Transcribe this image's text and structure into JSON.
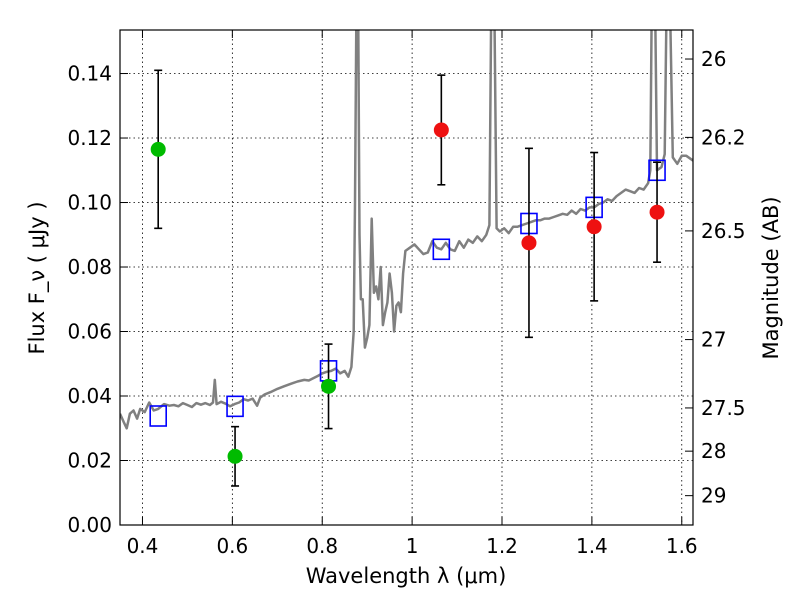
{
  "chart_data": {
    "type": "scatter",
    "xlabel": "Wavelength  λ (μm)",
    "ylabel": "Flux  F_ν  ( μJy )",
    "y2label": "Magnitude (AB)",
    "xlim": [
      0.35,
      1.625
    ],
    "ylim": [
      0.0,
      0.1535
    ],
    "grid": true,
    "x_ticks": [
      0.4,
      0.6,
      0.8,
      1.0,
      1.2,
      1.4,
      1.6
    ],
    "x_tick_labels": [
      "0.4",
      "0.6",
      "0.8",
      "1",
      "1.2",
      "1.4",
      "1.6"
    ],
    "y_ticks": [
      0.0,
      0.02,
      0.04,
      0.06,
      0.08,
      0.1,
      0.12,
      0.14
    ],
    "y_tick_labels": [
      "0.00",
      "0.02",
      "0.04",
      "0.06",
      "0.08",
      "0.10",
      "0.12",
      "0.14"
    ],
    "y2_ticks": [
      {
        "label": "26",
        "flux": 0.1445
      },
      {
        "label": "26.2",
        "flux": 0.1202
      },
      {
        "label": "26.5",
        "flux": 0.0912
      },
      {
        "label": "27",
        "flux": 0.0575
      },
      {
        "label": "27.5",
        "flux": 0.0363
      },
      {
        "label": "28",
        "flux": 0.0229
      },
      {
        "label": "29",
        "flux": 0.0091
      }
    ],
    "series": [
      {
        "marker": "circle",
        "color": "#00bb00",
        "points": [
          {
            "x": 0.435,
            "y": 0.1165,
            "err": 0.0245
          },
          {
            "x": 0.606,
            "y": 0.0213,
            "err": 0.0092
          },
          {
            "x": 0.814,
            "y": 0.043,
            "err": 0.0131
          }
        ]
      },
      {
        "marker": "circle",
        "color": "#ee1111",
        "points": [
          {
            "x": 1.065,
            "y": 0.1225,
            "err": 0.017
          },
          {
            "x": 1.26,
            "y": 0.0875,
            "err": 0.0293
          },
          {
            "x": 1.405,
            "y": 0.0925,
            "err": 0.023
          },
          {
            "x": 1.545,
            "y": 0.097,
            "err": 0.0155
          }
        ]
      },
      {
        "marker": "open-square",
        "color": "#0000ff",
        "points": [
          {
            "x": 0.435,
            "y": 0.0338
          },
          {
            "x": 0.606,
            "y": 0.0368
          },
          {
            "x": 0.814,
            "y": 0.0478
          },
          {
            "x": 1.065,
            "y": 0.0855
          },
          {
            "x": 1.26,
            "y": 0.0935
          },
          {
            "x": 1.405,
            "y": 0.0985
          },
          {
            "x": 1.545,
            "y": 0.11
          }
        ]
      },
      {
        "marker": "line",
        "color": "#808080",
        "points": [
          [
            0.35,
            0.0345
          ],
          [
            0.358,
            0.032
          ],
          [
            0.365,
            0.03
          ],
          [
            0.372,
            0.0345
          ],
          [
            0.38,
            0.0355
          ],
          [
            0.388,
            0.033
          ],
          [
            0.395,
            0.036
          ],
          [
            0.405,
            0.035
          ],
          [
            0.415,
            0.038
          ],
          [
            0.425,
            0.0355
          ],
          [
            0.435,
            0.036
          ],
          [
            0.448,
            0.0375
          ],
          [
            0.46,
            0.037
          ],
          [
            0.47,
            0.0372
          ],
          [
            0.48,
            0.0368
          ],
          [
            0.49,
            0.0378
          ],
          [
            0.5,
            0.0372
          ],
          [
            0.51,
            0.0366
          ],
          [
            0.52,
            0.0378
          ],
          [
            0.53,
            0.0373
          ],
          [
            0.54,
            0.0378
          ],
          [
            0.55,
            0.0372
          ],
          [
            0.557,
            0.038
          ],
          [
            0.561,
            0.045
          ],
          [
            0.565,
            0.0375
          ],
          [
            0.575,
            0.0382
          ],
          [
            0.585,
            0.0376
          ],
          [
            0.595,
            0.0368
          ],
          [
            0.605,
            0.0375
          ],
          [
            0.615,
            0.038
          ],
          [
            0.625,
            0.039
          ],
          [
            0.635,
            0.0386
          ],
          [
            0.645,
            0.0392
          ],
          [
            0.655,
            0.037
          ],
          [
            0.662,
            0.0395
          ],
          [
            0.672,
            0.0405
          ],
          [
            0.685,
            0.0412
          ],
          [
            0.7,
            0.0422
          ],
          [
            0.715,
            0.043
          ],
          [
            0.73,
            0.0438
          ],
          [
            0.745,
            0.0445
          ],
          [
            0.76,
            0.045
          ],
          [
            0.77,
            0.0448
          ],
          [
            0.78,
            0.0455
          ],
          [
            0.79,
            0.0462
          ],
          [
            0.8,
            0.047
          ],
          [
            0.81,
            0.0475
          ],
          [
            0.82,
            0.0478
          ],
          [
            0.83,
            0.0485
          ],
          [
            0.84,
            0.047
          ],
          [
            0.85,
            0.0478
          ],
          [
            0.858,
            0.046
          ],
          [
            0.865,
            0.049
          ],
          [
            0.87,
            0.06
          ],
          [
            0.873,
            0.1
          ],
          [
            0.876,
            0.16
          ],
          [
            0.88,
            0.16
          ],
          [
            0.883,
            0.09
          ],
          [
            0.886,
            0.07
          ],
          [
            0.89,
            0.07
          ],
          [
            0.895,
            0.055
          ],
          [
            0.9,
            0.058
          ],
          [
            0.905,
            0.062
          ],
          [
            0.91,
            0.095
          ],
          [
            0.915,
            0.072
          ],
          [
            0.92,
            0.074
          ],
          [
            0.925,
            0.07
          ],
          [
            0.93,
            0.08
          ],
          [
            0.935,
            0.062
          ],
          [
            0.94,
            0.066
          ],
          [
            0.945,
            0.069
          ],
          [
            0.95,
            0.078
          ],
          [
            0.955,
            0.072
          ],
          [
            0.96,
            0.06
          ],
          [
            0.965,
            0.068
          ],
          [
            0.97,
            0.069
          ],
          [
            0.975,
            0.066
          ],
          [
            0.98,
            0.078
          ],
          [
            0.985,
            0.085
          ],
          [
            0.995,
            0.086
          ],
          [
            1.005,
            0.087
          ],
          [
            1.015,
            0.0855
          ],
          [
            1.025,
            0.084
          ],
          [
            1.035,
            0.0845
          ],
          [
            1.045,
            0.088
          ],
          [
            1.055,
            0.086
          ],
          [
            1.065,
            0.0855
          ],
          [
            1.075,
            0.0875
          ],
          [
            1.085,
            0.0855
          ],
          [
            1.095,
            0.085
          ],
          [
            1.105,
            0.088
          ],
          [
            1.115,
            0.086
          ],
          [
            1.125,
            0.0885
          ],
          [
            1.135,
            0.0875
          ],
          [
            1.145,
            0.0895
          ],
          [
            1.155,
            0.088
          ],
          [
            1.165,
            0.09
          ],
          [
            1.172,
            0.093
          ],
          [
            1.176,
            0.16
          ],
          [
            1.183,
            0.16
          ],
          [
            1.188,
            0.092
          ],
          [
            1.195,
            0.091
          ],
          [
            1.205,
            0.092
          ],
          [
            1.215,
            0.0905
          ],
          [
            1.225,
            0.0925
          ],
          [
            1.235,
            0.0925
          ],
          [
            1.245,
            0.093
          ],
          [
            1.255,
            0.0935
          ],
          [
            1.265,
            0.094
          ],
          [
            1.275,
            0.0945
          ],
          [
            1.285,
            0.0945
          ],
          [
            1.295,
            0.095
          ],
          [
            1.305,
            0.095
          ],
          [
            1.315,
            0.0955
          ],
          [
            1.325,
            0.096
          ],
          [
            1.335,
            0.0965
          ],
          [
            1.345,
            0.0962
          ],
          [
            1.355,
            0.0975
          ],
          [
            1.365,
            0.0965
          ],
          [
            1.375,
            0.098
          ],
          [
            1.385,
            0.0975
          ],
          [
            1.395,
            0.0985
          ],
          [
            1.405,
            0.0985
          ],
          [
            1.415,
            0.0995
          ],
          [
            1.425,
            0.1
          ],
          [
            1.435,
            0.101
          ],
          [
            1.445,
            0.1005
          ],
          [
            1.455,
            0.102
          ],
          [
            1.465,
            0.103
          ],
          [
            1.475,
            0.104
          ],
          [
            1.485,
            0.1035
          ],
          [
            1.495,
            0.103
          ],
          [
            1.505,
            0.1045
          ],
          [
            1.515,
            0.104
          ],
          [
            1.525,
            0.106
          ],
          [
            1.53,
            0.11
          ],
          [
            1.533,
            0.16
          ],
          [
            1.541,
            0.16
          ],
          [
            1.545,
            0.11
          ],
          [
            1.555,
            0.111
          ],
          [
            1.562,
            0.115
          ],
          [
            1.566,
            0.16
          ],
          [
            1.574,
            0.16
          ],
          [
            1.58,
            0.114
          ],
          [
            1.59,
            0.112
          ],
          [
            1.6,
            0.1145
          ],
          [
            1.61,
            0.1145
          ],
          [
            1.625,
            0.113
          ]
        ]
      }
    ]
  }
}
